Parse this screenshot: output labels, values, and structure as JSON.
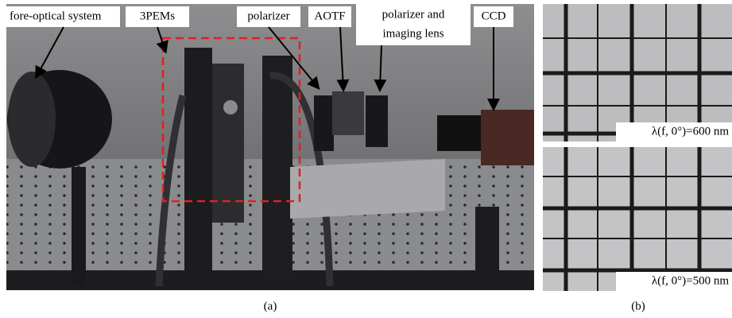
{
  "panel_a": {
    "labels": [
      {
        "text": "fore-optical system"
      },
      {
        "text": "3PEMs"
      },
      {
        "text": "polarizer"
      },
      {
        "text": "AOTF"
      },
      {
        "lines": [
          "polarizer and",
          "imaging lens"
        ]
      },
      {
        "text": "CCD"
      }
    ],
    "caption": "(a)"
  },
  "panel_b": {
    "images": [
      {
        "label": "λ(f, 0°)=600 nm"
      },
      {
        "label": "λ(f, 0°)=500 nm"
      }
    ],
    "caption": "(b)"
  }
}
